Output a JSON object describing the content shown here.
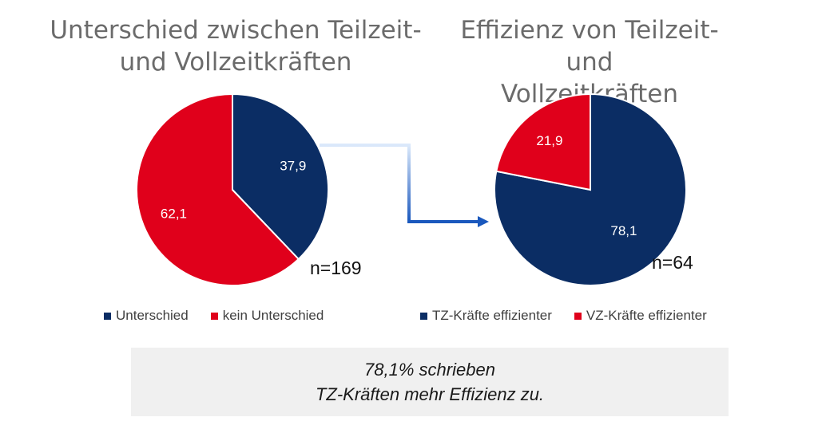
{
  "colors": {
    "navy": "#0b2d64",
    "red": "#e0001b",
    "arrow_light": "#dbe9fb",
    "arrow_dark": "#1a58bd",
    "callout_bg": "#f0f0f0"
  },
  "chart_data": [
    {
      "type": "pie",
      "title": "Unterschied zwischen Teilzeit- und Vollzeitkräften",
      "title_lines": [
        "Unterschied zwischen Teilzeit-",
        "und Vollzeitkräften"
      ],
      "n_label": "n=169",
      "legend_placement": "bottom",
      "slices": [
        {
          "name": "Unterschied",
          "value": 37.9,
          "label": "37,9",
          "color": "#0b2d64"
        },
        {
          "name": "kein Unterschied",
          "value": 62.1,
          "label": "62,1",
          "color": "#e0001b"
        }
      ]
    },
    {
      "type": "pie",
      "title": "Effizienz von Teilzeit- und Vollzeitkräften",
      "title_lines": [
        "Effizienz von Teilzeit- und",
        "Vollzeitkräften"
      ],
      "n_label": "n=64",
      "legend_placement": "bottom",
      "slices": [
        {
          "name": "TZ-Kräfte effizienter",
          "value": 78.1,
          "label": "78,1",
          "color": "#0b2d64"
        },
        {
          "name": "VZ-Kräfte effizienter",
          "value": 21.9,
          "label": "21,9",
          "color": "#e0001b"
        }
      ]
    }
  ],
  "callout": {
    "line1": "78,1% schrieben",
    "line2": "TZ-Kräften mehr Effizienz zu."
  }
}
